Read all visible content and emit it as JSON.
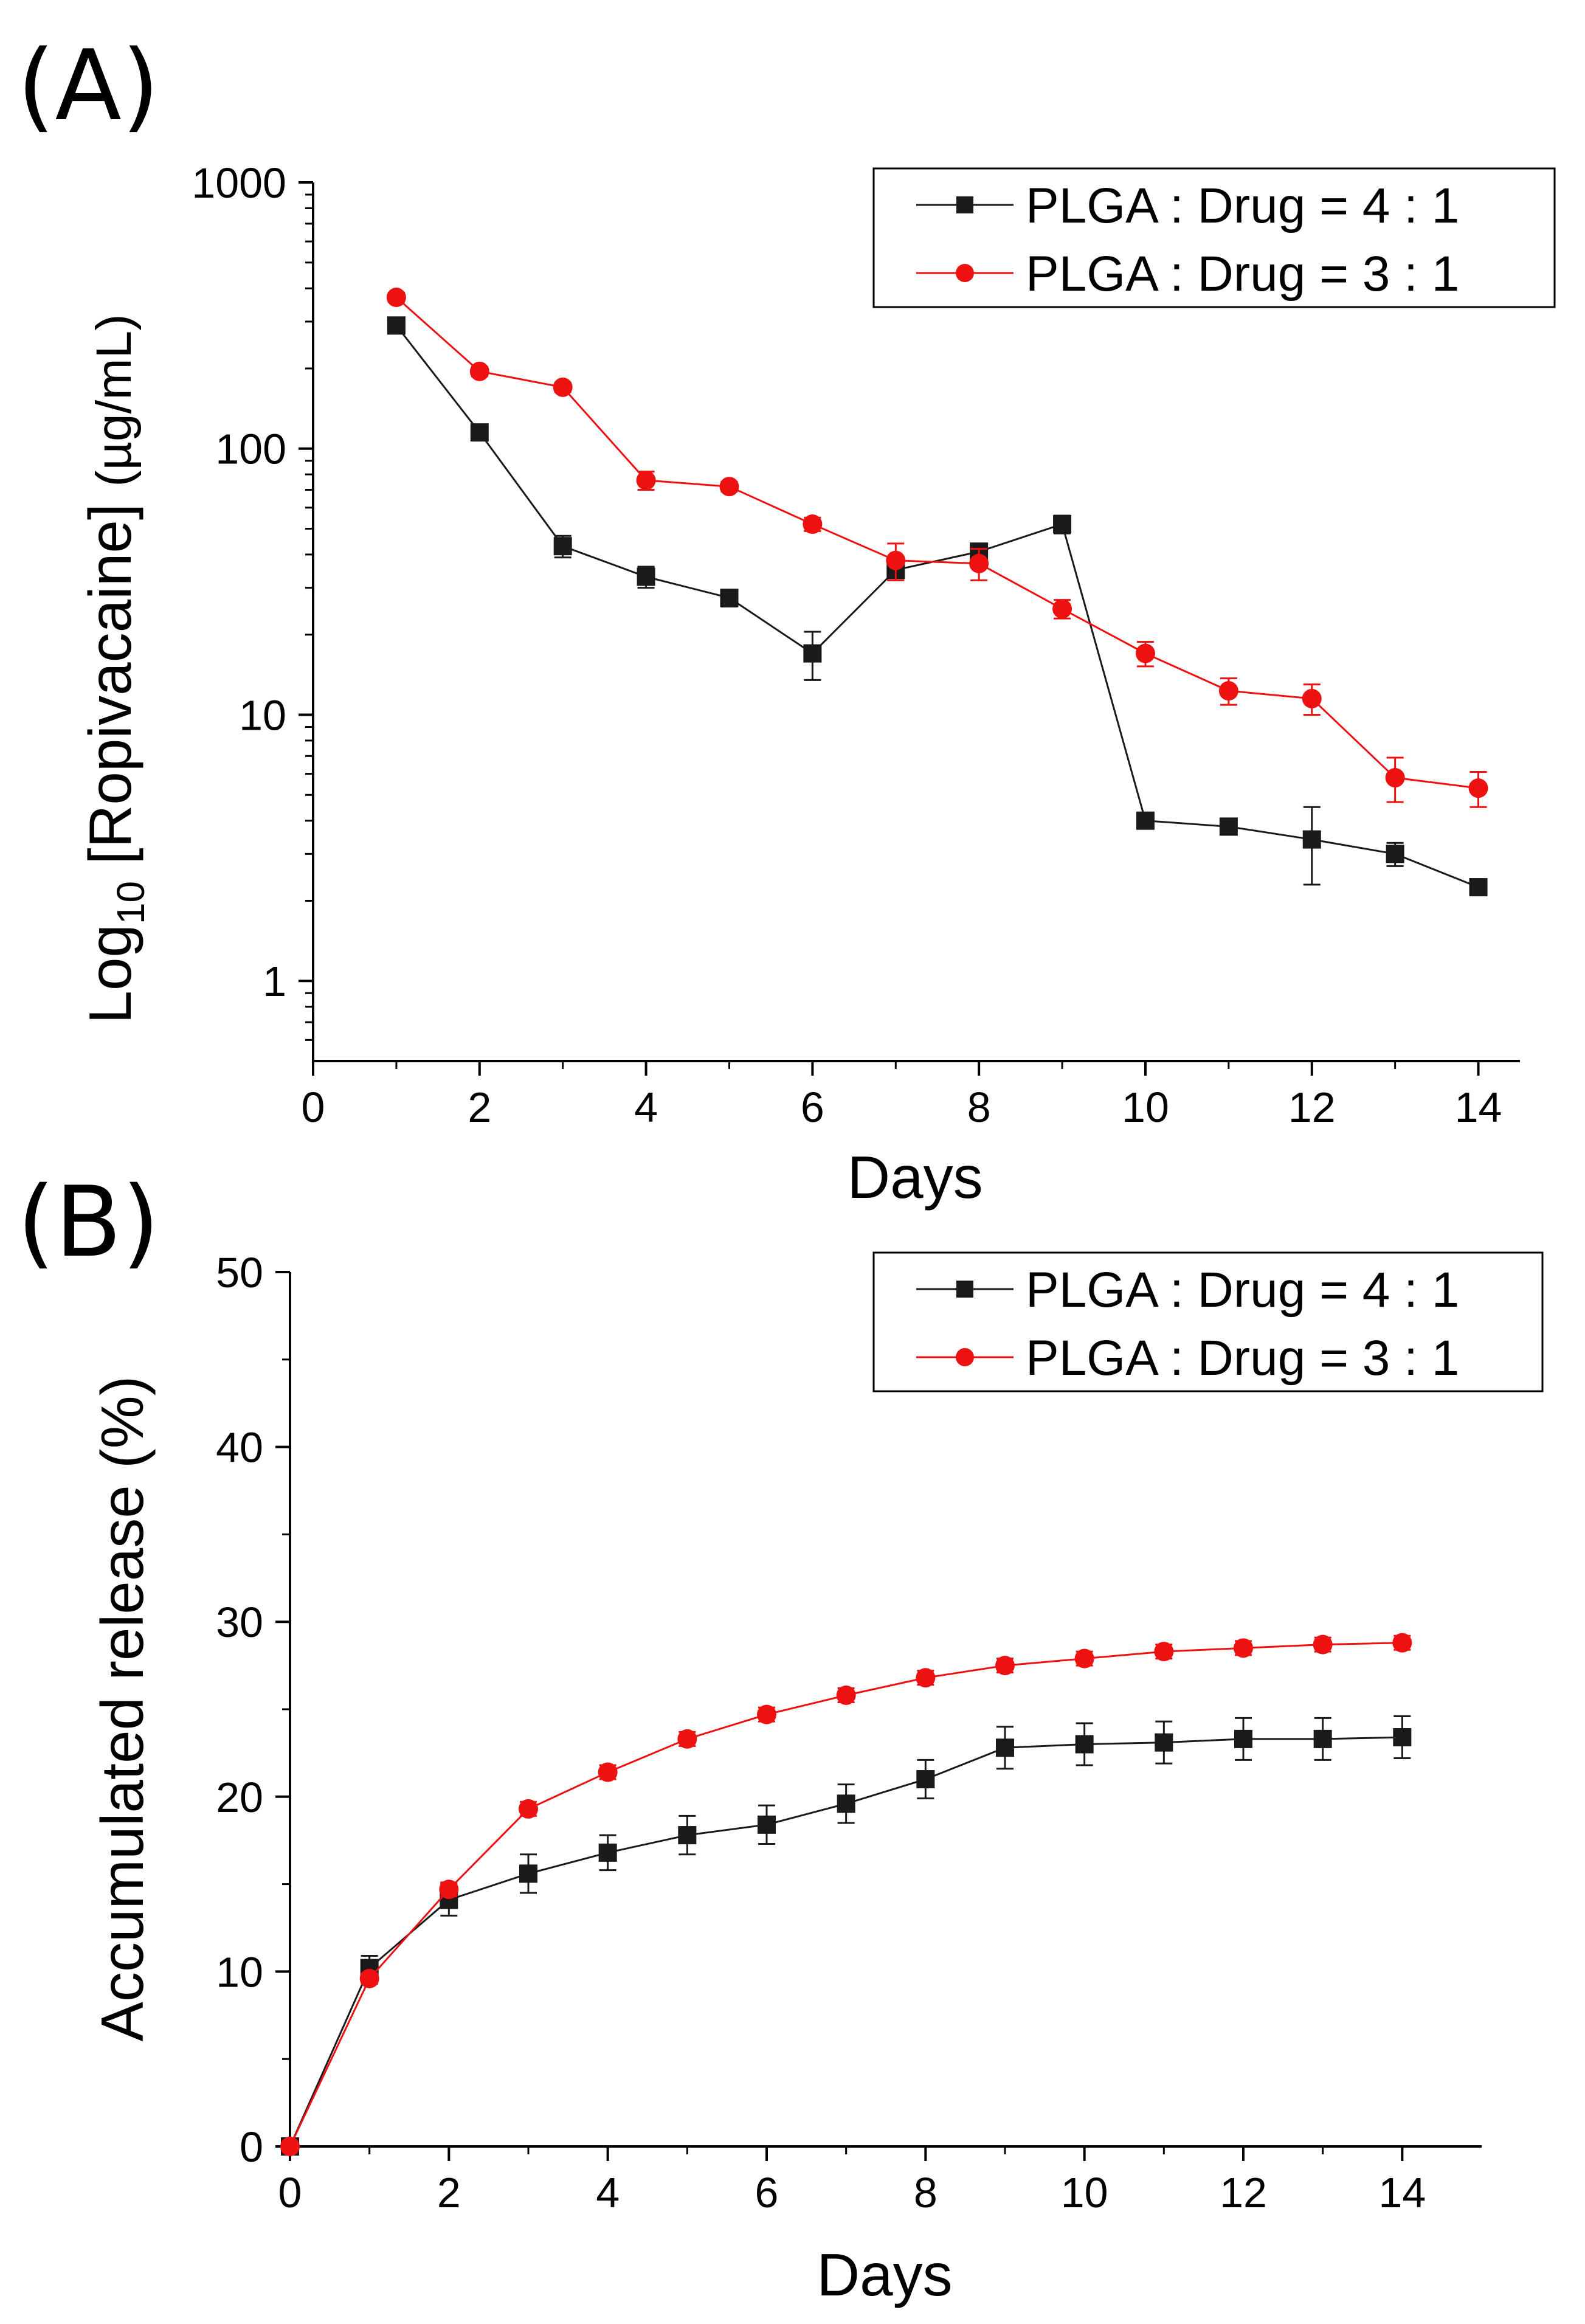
{
  "colors": {
    "series_4_1": "#1a1a1a",
    "series_3_1": "#ee1111",
    "axis": "#000000"
  },
  "chart_data": [
    {
      "panel_label": "(A)",
      "type": "line",
      "scale_y": "log",
      "xlabel": "Days",
      "ylabel_main": "Log",
      "ylabel_sub": "10",
      "ylabel_rest": " [Ropivacaine] ",
      "ylabel_unit": "(µg/mL)",
      "xlim": [
        0,
        14.5
      ],
      "ylim": [
        0.5,
        1000
      ],
      "xticks": [
        "0",
        "2",
        "4",
        "6",
        "8",
        "10",
        "12",
        "14"
      ],
      "yticks": [
        "1",
        "10",
        "100",
        "1000"
      ],
      "legend_position": "top-right",
      "series": [
        {
          "name": "PLGA : Drug = 4 : 1",
          "marker": "square",
          "x": [
            1,
            2,
            3,
            4,
            5,
            6,
            7,
            8,
            9,
            10,
            11,
            12,
            13,
            14
          ],
          "y": [
            290,
            115,
            43,
            33,
            27.5,
            17,
            35,
            41,
            52,
            4.0,
            3.8,
            3.4,
            3.0,
            2.25
          ],
          "err": [
            15,
            6,
            4,
            3,
            2,
            3.5,
            3,
            3,
            4,
            0.2,
            0.2,
            1.1,
            0.3,
            0.12
          ]
        },
        {
          "name": "PLGA : Drug = 3 : 1",
          "marker": "circle",
          "x": [
            1,
            2,
            3,
            4,
            5,
            6,
            7,
            8,
            9,
            10,
            11,
            12,
            13,
            14
          ],
          "y": [
            370,
            195,
            170,
            76,
            72,
            52,
            38,
            37,
            25,
            17,
            12.3,
            11.5,
            5.8,
            5.3
          ],
          "err": [
            15,
            8,
            7,
            6,
            3,
            3,
            6,
            5,
            2,
            1.8,
            1.4,
            1.5,
            1.1,
            0.8
          ]
        }
      ]
    },
    {
      "panel_label": "(B)",
      "type": "line",
      "scale_y": "linear",
      "xlabel": "Days",
      "ylabel": "Accumulated release (%)",
      "xlim": [
        0,
        15
      ],
      "ylim": [
        0,
        50
      ],
      "xticks": [
        "0",
        "2",
        "4",
        "6",
        "8",
        "10",
        "12",
        "14"
      ],
      "yticks": [
        "0",
        "10",
        "20",
        "30",
        "40",
        "50"
      ],
      "legend_position": "top-right",
      "series": [
        {
          "name": "PLGA : Drug = 4 : 1",
          "marker": "square",
          "x": [
            0,
            1,
            2,
            3,
            4,
            5,
            6,
            7,
            8,
            9,
            10,
            11,
            12,
            13,
            14
          ],
          "y": [
            0,
            10.2,
            14.1,
            15.6,
            16.8,
            17.8,
            18.4,
            19.6,
            21.0,
            22.8,
            23.0,
            23.1,
            23.3,
            23.3,
            23.4
          ],
          "err": [
            0,
            0.7,
            0.9,
            1.1,
            1.0,
            1.1,
            1.1,
            1.1,
            1.1,
            1.2,
            1.2,
            1.2,
            1.2,
            1.2,
            1.2
          ]
        },
        {
          "name": "PLGA : Drug = 3 : 1",
          "marker": "circle",
          "x": [
            0,
            1,
            2,
            3,
            4,
            5,
            6,
            7,
            8,
            9,
            10,
            11,
            12,
            13,
            14
          ],
          "y": [
            0,
            9.6,
            14.7,
            19.3,
            21.4,
            23.3,
            24.7,
            25.8,
            26.8,
            27.5,
            27.9,
            28.3,
            28.5,
            28.7,
            28.8
          ],
          "err": [
            0,
            0.3,
            0.4,
            0.4,
            0.4,
            0.4,
            0.4,
            0.4,
            0.4,
            0.4,
            0.4,
            0.4,
            0.4,
            0.4,
            0.4
          ]
        }
      ]
    }
  ]
}
